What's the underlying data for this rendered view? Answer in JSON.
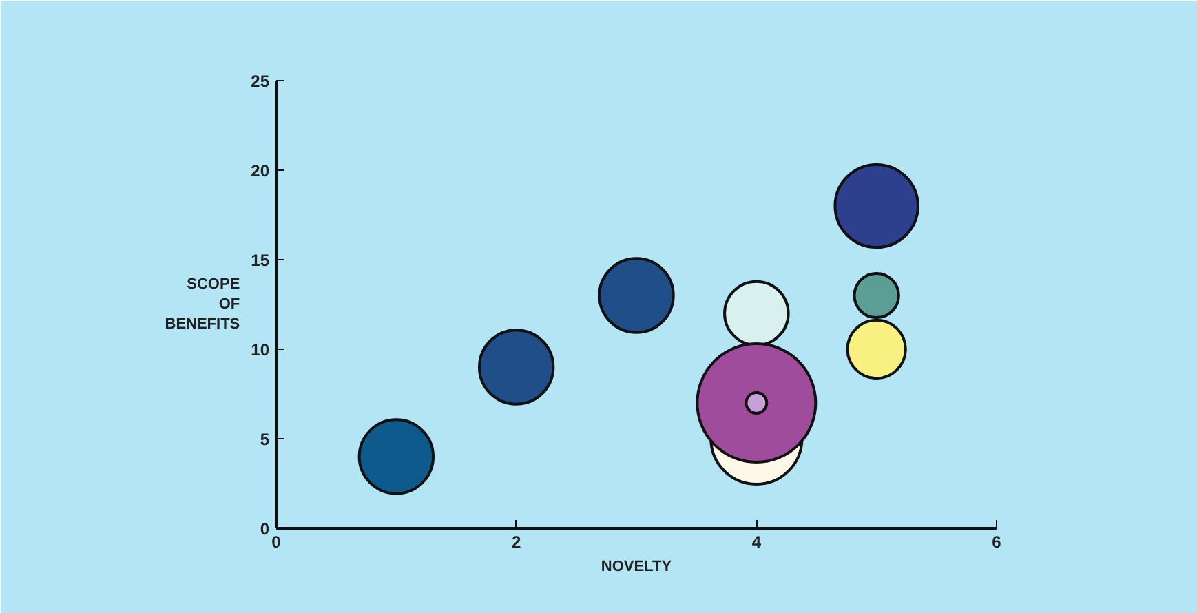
{
  "chart_data": {
    "type": "bubble",
    "xlabel": "NOVELTY",
    "ylabel": "SCOPE\nOF\nBENEFITS",
    "x": [
      1,
      2,
      3,
      4,
      4,
      4,
      4,
      5,
      5,
      5
    ],
    "values": [
      4,
      9,
      13,
      12,
      5,
      7,
      7,
      18,
      13,
      10
    ],
    "sizes": [
      0.39,
      0.39,
      0.39,
      0.29,
      0.59,
      1,
      0.03,
      0.49,
      0.14,
      0.24
    ],
    "colors": [
      "#0f5a8c",
      "#1f4e88",
      "#1f4e88",
      "#d8f0ee",
      "#fdf8e8",
      "#a04c9c",
      "#c8a0d8",
      "#2e3f8e",
      "#5a9e96",
      "#f8f080"
    ],
    "xlim": [
      0,
      6
    ],
    "ylim": [
      0,
      25
    ],
    "xticks": [
      0,
      2,
      4,
      6
    ],
    "yticks": [
      0,
      5,
      10,
      15,
      20,
      25
    ],
    "grid": false
  }
}
